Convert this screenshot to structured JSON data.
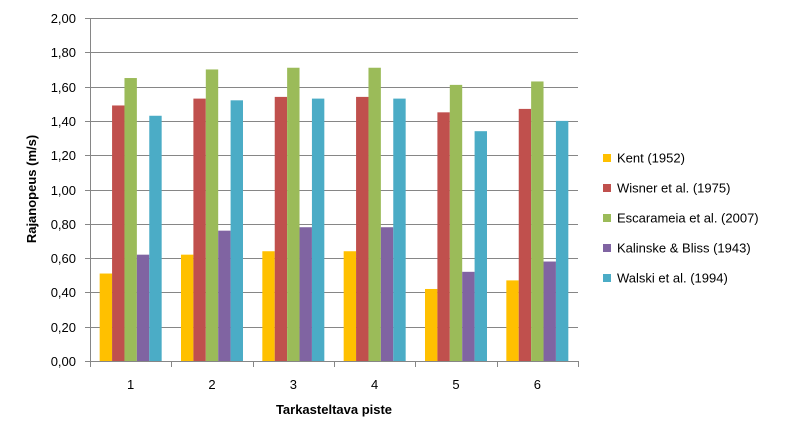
{
  "chart_data": {
    "type": "bar",
    "title": "",
    "xlabel": "Tarkasteltava piste",
    "ylabel": "Rajanopeus (m/s)",
    "categories": [
      "1",
      "2",
      "3",
      "4",
      "5",
      "6"
    ],
    "ylim": [
      0,
      2
    ],
    "ytick_step": 0.2,
    "ytick_labels": [
      "0,00",
      "0,20",
      "0,40",
      "0,60",
      "0,80",
      "1,00",
      "1,20",
      "1,40",
      "1,60",
      "1,80",
      "2,00"
    ],
    "grid": true,
    "legend_position": "right",
    "series": [
      {
        "name": "Kent (1952)",
        "color": "#ffc000",
        "values": [
          0.51,
          0.62,
          0.64,
          0.64,
          0.42,
          0.47
        ]
      },
      {
        "name": "Wisner et al. (1975)",
        "color": "#c0504d",
        "values": [
          1.49,
          1.53,
          1.54,
          1.54,
          1.45,
          1.47
        ]
      },
      {
        "name": "Escarameia et al. (2007)",
        "color": "#9bbb59",
        "values": [
          1.65,
          1.7,
          1.71,
          1.71,
          1.61,
          1.63
        ]
      },
      {
        "name": "Kalinske & Bliss (1943)",
        "color": "#8064a2",
        "values": [
          0.62,
          0.76,
          0.78,
          0.78,
          0.52,
          0.58
        ]
      },
      {
        "name": "Walski et al. (1994)",
        "color": "#4bacc6",
        "values": [
          1.43,
          1.52,
          1.53,
          1.53,
          1.34,
          1.4
        ]
      }
    ]
  }
}
